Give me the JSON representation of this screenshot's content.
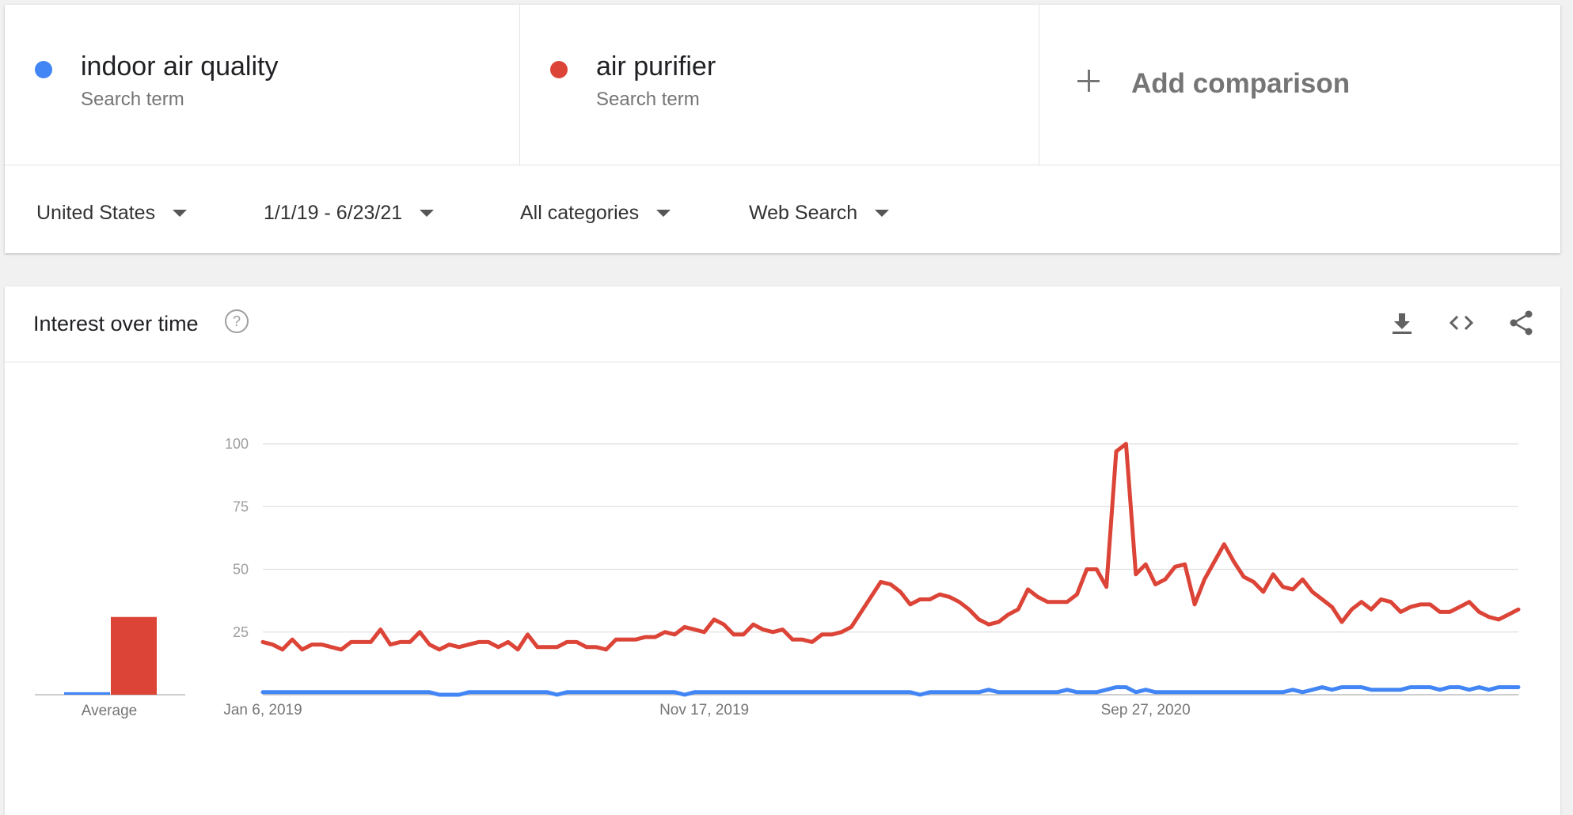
{
  "comparison": {
    "terms": [
      {
        "label": "indoor air quality",
        "sublabel": "Search term",
        "color": "#4285f4"
      },
      {
        "label": "air purifier",
        "sublabel": "Search term",
        "color": "#db4437"
      }
    ],
    "add_label": "Add comparison"
  },
  "filters": {
    "region": "United States",
    "date_range": "1/1/19 - 6/23/21",
    "category": "All categories",
    "search_type": "Web Search"
  },
  "panel": {
    "title": "Interest over time",
    "icons": [
      "help-icon",
      "download-icon",
      "embed-icon",
      "share-icon"
    ]
  },
  "chart_data": {
    "type": "line",
    "ylim": [
      0,
      100
    ],
    "yticks": [
      25,
      50,
      75,
      100
    ],
    "x_tick_labels": [
      "Jan 6, 2019",
      "Nov 17, 2019",
      "Sep 27, 2020"
    ],
    "x_tick_index": [
      0,
      45,
      90
    ],
    "grid": true,
    "average_label": "Average",
    "average": [
      {
        "name": "indoor air quality",
        "value": 1,
        "color": "#4285f4"
      },
      {
        "name": "air purifier",
        "value": 31,
        "color": "#db4437"
      }
    ],
    "series": [
      {
        "name": "air purifier",
        "color": "#db4437",
        "values": [
          21,
          20,
          18,
          22,
          18,
          20,
          20,
          19,
          18,
          21,
          21,
          21,
          26,
          20,
          21,
          21,
          25,
          20,
          18,
          20,
          19,
          20,
          21,
          21,
          19,
          21,
          18,
          24,
          19,
          19,
          19,
          21,
          21,
          19,
          19,
          18,
          22,
          22,
          22,
          23,
          23,
          25,
          24,
          27,
          26,
          25,
          30,
          28,
          24,
          24,
          28,
          26,
          25,
          26,
          22,
          22,
          21,
          24,
          24,
          25,
          27,
          33,
          39,
          45,
          44,
          41,
          36,
          38,
          38,
          40,
          39,
          37,
          34,
          30,
          28,
          29,
          32,
          34,
          42,
          39,
          37,
          37,
          37,
          40,
          50,
          50,
          43,
          97,
          100,
          48,
          52,
          44,
          46,
          51,
          52,
          36,
          46,
          53,
          60,
          53,
          47,
          45,
          41,
          48,
          43,
          42,
          46,
          41,
          38,
          35,
          29,
          34,
          37,
          34,
          38,
          37,
          33,
          35,
          36,
          36,
          33,
          33,
          35,
          37,
          33,
          31,
          30,
          32,
          34
        ]
      },
      {
        "name": "indoor air quality",
        "color": "#4285f4",
        "values": [
          1,
          1,
          1,
          1,
          1,
          1,
          1,
          1,
          1,
          1,
          1,
          1,
          1,
          1,
          1,
          1,
          1,
          1,
          0,
          0,
          0,
          1,
          1,
          1,
          1,
          1,
          1,
          1,
          1,
          1,
          0,
          1,
          1,
          1,
          1,
          1,
          1,
          1,
          1,
          1,
          1,
          1,
          1,
          0,
          1,
          1,
          1,
          1,
          1,
          1,
          1,
          1,
          1,
          1,
          1,
          1,
          1,
          1,
          1,
          1,
          1,
          1,
          1,
          1,
          1,
          1,
          1,
          0,
          1,
          1,
          1,
          1,
          1,
          1,
          2,
          1,
          1,
          1,
          1,
          1,
          1,
          1,
          2,
          1,
          1,
          1,
          2,
          3,
          3,
          1,
          2,
          1,
          1,
          1,
          1,
          1,
          1,
          1,
          1,
          1,
          1,
          1,
          1,
          1,
          1,
          2,
          1,
          2,
          3,
          2,
          3,
          3,
          3,
          2,
          2,
          2,
          2,
          3,
          3,
          3,
          2,
          3,
          3,
          2,
          3,
          2,
          3,
          3,
          3
        ]
      }
    ]
  }
}
